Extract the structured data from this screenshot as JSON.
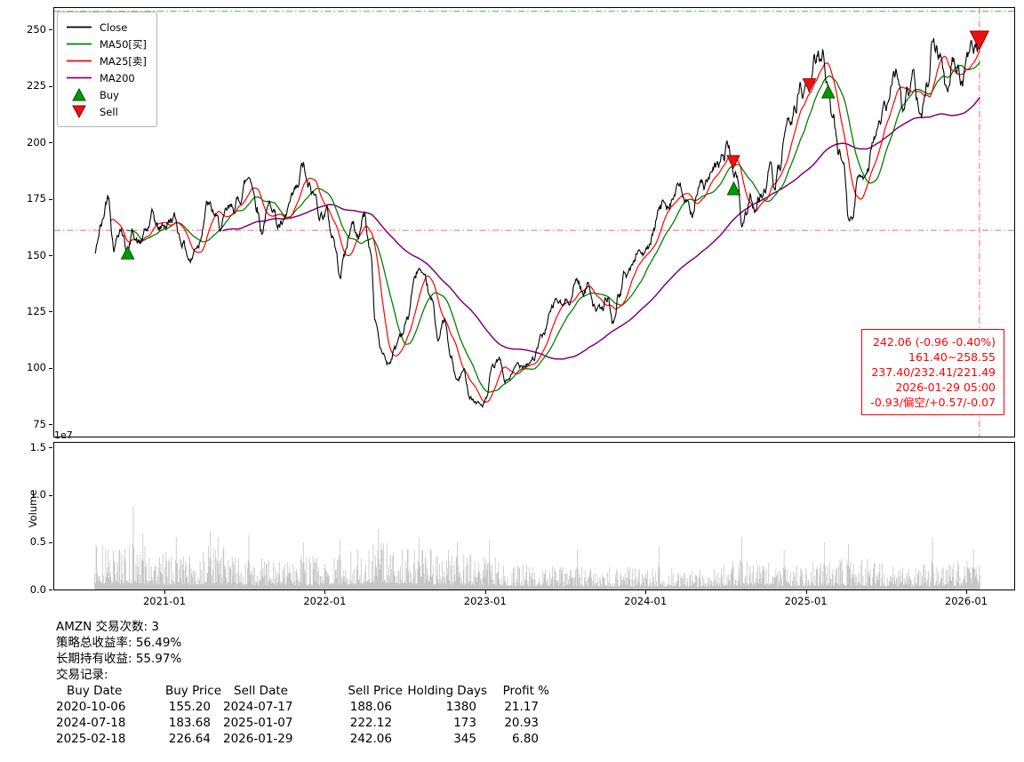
{
  "colors": {
    "close": "#000000",
    "ma50": "#008000",
    "ma25": "#ff0000",
    "ma200": "#800080",
    "buy_fill": "#009900",
    "buy_edge": "#004d00",
    "sell_fill": "#ee1111",
    "sell_edge": "#8b0000",
    "volume_bar": "#c6c6c6",
    "annotation": "#ff0000"
  },
  "legend": {
    "items": [
      {
        "label": "Close",
        "type": "line",
        "color": "#000000"
      },
      {
        "label": "MA50[买]",
        "type": "line",
        "color": "#008000"
      },
      {
        "label": "MA25[卖]",
        "type": "line",
        "color": "#ff0000"
      },
      {
        "label": "MA200",
        "type": "line",
        "color": "#800080"
      },
      {
        "label": "Buy",
        "type": "triangle-up",
        "color": "#009900",
        "edge": "#004d00"
      },
      {
        "label": "Sell",
        "type": "triangle-down",
        "color": "#ee1111",
        "edge": "#8b0000"
      }
    ]
  },
  "annotation_box": {
    "lines": [
      "242.06 (-0.96 -0.40%)",
      "161.40~258.55",
      "237.40/232.41/221.49",
      "2026-01-29 05:00",
      "-0.93/偏空/+0.57/-0.07"
    ]
  },
  "summary": {
    "lines": [
      "AMZN 交易次数: 3",
      "策略总收益率: 56.49%",
      "长期持有收益: 55.97%",
      "交易记录:"
    ]
  },
  "trades_table": {
    "headers": [
      "Buy Date",
      "Buy Price",
      "Sell Date",
      "Sell Price",
      "Holding Days",
      "Profit %"
    ],
    "rows": [
      [
        "2020-10-06",
        "155.20",
        "2024-07-17",
        "188.06",
        "1380",
        "21.17"
      ],
      [
        "2024-07-18",
        "183.68",
        "2025-01-07",
        "222.12",
        "173",
        "20.93"
      ],
      [
        "2025-02-18",
        "226.64",
        "2026-01-29",
        "242.06",
        "345",
        "6.80"
      ]
    ]
  },
  "chart_data": {
    "type": "line",
    "symbol": "AMZN",
    "xlim": [
      2020.307,
      2026.294
    ],
    "ylim": [
      70,
      260
    ],
    "y_ticks": [
      75,
      100,
      125,
      150,
      175,
      200,
      225,
      250
    ],
    "x_ticks": [
      {
        "t": 2021.0,
        "label": "2021-01"
      },
      {
        "t": 2022.0,
        "label": "2022-01"
      },
      {
        "t": 2023.0,
        "label": "2023-01"
      },
      {
        "t": 2024.0,
        "label": "2024-01"
      },
      {
        "t": 2025.0,
        "label": "2025-01"
      },
      {
        "t": 2026.0,
        "label": "2026-01"
      }
    ],
    "hlines": [
      {
        "value": 258.55,
        "color": "#55aa55",
        "name": "upper-range-line"
      },
      {
        "value": 161.4,
        "color": "#ff6666",
        "name": "lower-range-line"
      }
    ],
    "vline": {
      "t": 2026.077,
      "color": "#ff6666"
    },
    "seed": 42,
    "series": {
      "t_start": 2020.56,
      "t_end": 2026.08,
      "points": 1380,
      "close_keypoints": [
        [
          2020.56,
          151
        ],
        [
          2020.6,
          163
        ],
        [
          2020.645,
          177
        ],
        [
          2020.68,
          157
        ],
        [
          2020.72,
          165
        ],
        [
          2020.765,
          153
        ],
        [
          2020.8,
          161
        ],
        [
          2020.84,
          156
        ],
        [
          2020.88,
          160
        ],
        [
          2020.92,
          166
        ],
        [
          2020.96,
          161
        ],
        [
          2021.0,
          164
        ],
        [
          2021.05,
          167
        ],
        [
          2021.1,
          158
        ],
        [
          2021.16,
          149
        ],
        [
          2021.2,
          156
        ],
        [
          2021.26,
          174
        ],
        [
          2021.3,
          168
        ],
        [
          2021.34,
          162
        ],
        [
          2021.4,
          168
        ],
        [
          2021.45,
          173
        ],
        [
          2021.5,
          183
        ],
        [
          2021.53,
          186
        ],
        [
          2021.57,
          175
        ],
        [
          2021.6,
          163
        ],
        [
          2021.63,
          170
        ],
        [
          2021.67,
          174
        ],
        [
          2021.7,
          165
        ],
        [
          2021.74,
          163
        ],
        [
          2021.78,
          171
        ],
        [
          2021.82,
          176
        ],
        [
          2021.86,
          188
        ],
        [
          2021.89,
          178
        ],
        [
          2021.93,
          175
        ],
        [
          2021.97,
          169
        ],
        [
          2022.0,
          171
        ],
        [
          2022.04,
          160
        ],
        [
          2022.09,
          144
        ],
        [
          2022.12,
          152
        ],
        [
          2022.16,
          164
        ],
        [
          2022.2,
          159
        ],
        [
          2022.24,
          168
        ],
        [
          2022.28,
          152
        ],
        [
          2022.31,
          122
        ],
        [
          2022.35,
          107
        ],
        [
          2022.39,
          103
        ],
        [
          2022.43,
          109
        ],
        [
          2022.47,
          116
        ],
        [
          2022.51,
          122
        ],
        [
          2022.55,
          138
        ],
        [
          2022.58,
          144
        ],
        [
          2022.62,
          135
        ],
        [
          2022.66,
          128
        ],
        [
          2022.7,
          114
        ],
        [
          2022.74,
          121
        ],
        [
          2022.78,
          104
        ],
        [
          2022.82,
          94
        ],
        [
          2022.86,
          98
        ],
        [
          2022.9,
          89
        ],
        [
          2022.94,
          86
        ],
        [
          2022.97,
          84
        ],
        [
          2023.0,
          86
        ],
        [
          2023.04,
          99
        ],
        [
          2023.08,
          103
        ],
        [
          2023.12,
          94
        ],
        [
          2023.16,
          97
        ],
        [
          2023.2,
          101
        ],
        [
          2023.25,
          104
        ],
        [
          2023.3,
          106
        ],
        [
          2023.35,
          114
        ],
        [
          2023.4,
          124
        ],
        [
          2023.44,
          130
        ],
        [
          2023.48,
          127
        ],
        [
          2023.52,
          132
        ],
        [
          2023.57,
          140
        ],
        [
          2023.61,
          134
        ],
        [
          2023.64,
          138
        ],
        [
          2023.68,
          129
        ],
        [
          2023.72,
          125
        ],
        [
          2023.76,
          131
        ],
        [
          2023.79,
          120
        ],
        [
          2023.83,
          133
        ],
        [
          2023.87,
          142
        ],
        [
          2023.91,
          145
        ],
        [
          2023.95,
          153
        ],
        [
          2023.98,
          152
        ],
        [
          2024.0,
          151
        ],
        [
          2024.04,
          157
        ],
        [
          2024.08,
          169
        ],
        [
          2024.12,
          174
        ],
        [
          2024.16,
          178
        ],
        [
          2024.2,
          180
        ],
        [
          2024.24,
          175
        ],
        [
          2024.28,
          165
        ],
        [
          2024.32,
          182
        ],
        [
          2024.36,
          181
        ],
        [
          2024.4,
          184
        ],
        [
          2024.44,
          186
        ],
        [
          2024.48,
          193
        ],
        [
          2024.51,
          199
        ],
        [
          2024.542,
          188
        ],
        [
          2024.57,
          183
        ],
        [
          2024.595,
          163
        ],
        [
          2024.62,
          168
        ],
        [
          2024.65,
          178
        ],
        [
          2024.68,
          172
        ],
        [
          2024.71,
          176
        ],
        [
          2024.74,
          181
        ],
        [
          2024.77,
          187
        ],
        [
          2024.8,
          179
        ],
        [
          2024.83,
          186
        ],
        [
          2024.86,
          197
        ],
        [
          2024.9,
          207
        ],
        [
          2024.93,
          218
        ],
        [
          2024.96,
          225
        ],
        [
          2024.98,
          221
        ],
        [
          2025.016,
          223
        ],
        [
          2025.05,
          234
        ],
        [
          2025.08,
          238
        ],
        [
          2025.105,
          242
        ],
        [
          2025.134,
          227
        ],
        [
          2025.16,
          214
        ],
        [
          2025.2,
          197
        ],
        [
          2025.23,
          194
        ],
        [
          2025.26,
          172
        ],
        [
          2025.285,
          167
        ],
        [
          2025.32,
          184
        ],
        [
          2025.35,
          187
        ],
        [
          2025.38,
          192
        ],
        [
          2025.42,
          206
        ],
        [
          2025.46,
          209
        ],
        [
          2025.5,
          215
        ],
        [
          2025.54,
          226
        ],
        [
          2025.57,
          231
        ],
        [
          2025.6,
          214
        ],
        [
          2025.63,
          222
        ],
        [
          2025.66,
          230
        ],
        [
          2025.69,
          223
        ],
        [
          2025.72,
          219
        ],
        [
          2025.75,
          228
        ],
        [
          2025.785,
          251
        ],
        [
          2025.81,
          246
        ],
        [
          2025.84,
          238
        ],
        [
          2025.875,
          221
        ],
        [
          2025.91,
          235
        ],
        [
          2025.94,
          231
        ],
        [
          2025.97,
          229
        ],
        [
          2026.0,
          236
        ],
        [
          2026.03,
          240
        ],
        [
          2026.06,
          238
        ],
        [
          2026.08,
          242.06
        ]
      ]
    },
    "moving_averages": {
      "ma25_window": 25,
      "ma50_window": 50,
      "ma200_window": 200
    },
    "markers": {
      "buys": [
        {
          "t": 2020.765,
          "price": 155.2,
          "date": "2020-10-06"
        },
        {
          "t": 2024.545,
          "price": 183.68,
          "date": "2024-07-18"
        },
        {
          "t": 2025.134,
          "price": 226.64,
          "date": "2025-02-18"
        }
      ],
      "sells": [
        {
          "t": 2024.542,
          "price": 188.06,
          "date": "2024-07-17"
        },
        {
          "t": 2025.016,
          "price": 222.12,
          "date": "2025-01-07"
        },
        {
          "t": 2026.077,
          "price": 242.06,
          "date": "2026-01-29",
          "size": 19
        }
      ]
    },
    "volume": {
      "axis_label": "Volume",
      "unit_label": "1e7",
      "ylim": [
        0,
        1.55
      ],
      "y_tick_labels": [
        "0.0",
        "0.5",
        "1.0",
        "1.5"
      ],
      "y_tick_values": [
        0,
        0.5,
        1.0,
        1.5
      ],
      "envelope": [
        [
          2020.56,
          0.4
        ],
        [
          2020.9,
          0.38
        ],
        [
          2021.1,
          0.3
        ],
        [
          2021.3,
          0.4
        ],
        [
          2021.6,
          0.28
        ],
        [
          2021.9,
          0.3
        ],
        [
          2022.1,
          0.34
        ],
        [
          2022.35,
          0.42
        ],
        [
          2022.7,
          0.36
        ],
        [
          2023.0,
          0.3
        ],
        [
          2023.3,
          0.22
        ],
        [
          2023.7,
          0.2
        ],
        [
          2024.0,
          0.2
        ],
        [
          2024.3,
          0.18
        ],
        [
          2024.6,
          0.26
        ],
        [
          2024.9,
          0.22
        ],
        [
          2025.1,
          0.26
        ],
        [
          2025.3,
          0.28
        ],
        [
          2025.6,
          0.2
        ],
        [
          2025.9,
          0.26
        ],
        [
          2026.08,
          0.3
        ]
      ],
      "spikes": [
        [
          2020.8,
          0.88
        ],
        [
          2020.86,
          0.6
        ],
        [
          2021.07,
          0.55
        ],
        [
          2021.28,
          0.62
        ],
        [
          2021.33,
          0.55
        ],
        [
          2021.52,
          0.57
        ],
        [
          2021.86,
          0.5
        ],
        [
          2022.09,
          0.52
        ],
        [
          2022.33,
          0.64
        ],
        [
          2022.58,
          0.55
        ],
        [
          2022.82,
          0.5
        ],
        [
          2023.02,
          0.52
        ],
        [
          2023.57,
          0.42
        ],
        [
          2024.08,
          0.45
        ],
        [
          2024.595,
          0.55
        ],
        [
          2024.86,
          0.42
        ],
        [
          2025.11,
          0.5
        ],
        [
          2025.26,
          0.48
        ],
        [
          2025.785,
          0.55
        ],
        [
          2026.04,
          0.42
        ]
      ]
    }
  }
}
